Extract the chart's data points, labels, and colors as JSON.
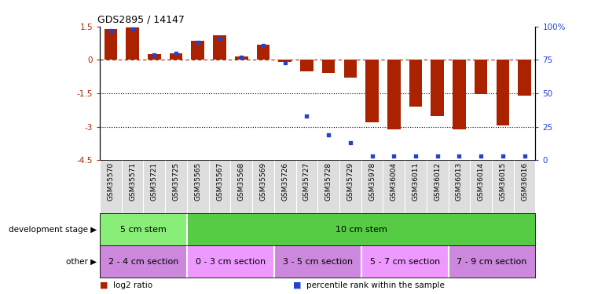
{
  "title": "GDS2895 / 14147",
  "samples": [
    "GSM35570",
    "GSM35571",
    "GSM35721",
    "GSM35725",
    "GSM35565",
    "GSM35567",
    "GSM35568",
    "GSM35569",
    "GSM35726",
    "GSM35727",
    "GSM35728",
    "GSM35729",
    "GSM35978",
    "GSM36004",
    "GSM36011",
    "GSM36012",
    "GSM36013",
    "GSM36014",
    "GSM36015",
    "GSM36016"
  ],
  "log2_ratio": [
    1.4,
    1.45,
    0.25,
    0.3,
    0.85,
    1.1,
    0.15,
    0.7,
    -0.1,
    -0.5,
    -0.6,
    -0.8,
    -2.8,
    -3.1,
    -2.1,
    -2.5,
    -3.1,
    -1.55,
    -2.95,
    -1.6
  ],
  "percentile": [
    97,
    98,
    79,
    80,
    88,
    91,
    77,
    86,
    73,
    33,
    19,
    13,
    3,
    3,
    3,
    3,
    3,
    3,
    3,
    3
  ],
  "ylim_left": [
    -4.5,
    1.5
  ],
  "ylim_right": [
    0,
    100
  ],
  "yticks_left": [
    -4.5,
    -3.0,
    -1.5,
    0.0,
    1.5
  ],
  "yticks_right": [
    0,
    25,
    50,
    75,
    100
  ],
  "hline_y": 0.0,
  "dotted_lines": [
    -1.5,
    -3.0
  ],
  "bar_color": "#aa2200",
  "dot_color": "#2244cc",
  "bar_width": 0.6,
  "dot_size": 10,
  "dev_stage_groups": [
    {
      "label": "5 cm stem",
      "start": 0,
      "end": 4,
      "color": "#88ee77"
    },
    {
      "label": "10 cm stem",
      "start": 4,
      "end": 20,
      "color": "#55cc44"
    }
  ],
  "other_groups": [
    {
      "label": "2 - 4 cm section",
      "start": 0,
      "end": 4,
      "color": "#cc88dd"
    },
    {
      "label": "0 - 3 cm section",
      "start": 4,
      "end": 8,
      "color": "#ee99ff"
    },
    {
      "label": "3 - 5 cm section",
      "start": 8,
      "end": 12,
      "color": "#cc88dd"
    },
    {
      "label": "5 - 7 cm section",
      "start": 12,
      "end": 16,
      "color": "#ee99ff"
    },
    {
      "label": "7 - 9 cm section",
      "start": 16,
      "end": 20,
      "color": "#cc88dd"
    }
  ],
  "legend_items": [
    {
      "label": "log2 ratio",
      "color": "#aa2200"
    },
    {
      "label": "percentile rank within the sample",
      "color": "#2244cc"
    }
  ],
  "dev_label": "development stage",
  "other_label": "other",
  "label_color": "#666666",
  "xticklabel_bg": "#dddddd",
  "background_color": "#ffffff",
  "tick_label_fontsize": 7.5,
  "sample_fontsize": 6.5,
  "band_fontsize": 8,
  "legend_fontsize": 7.5
}
